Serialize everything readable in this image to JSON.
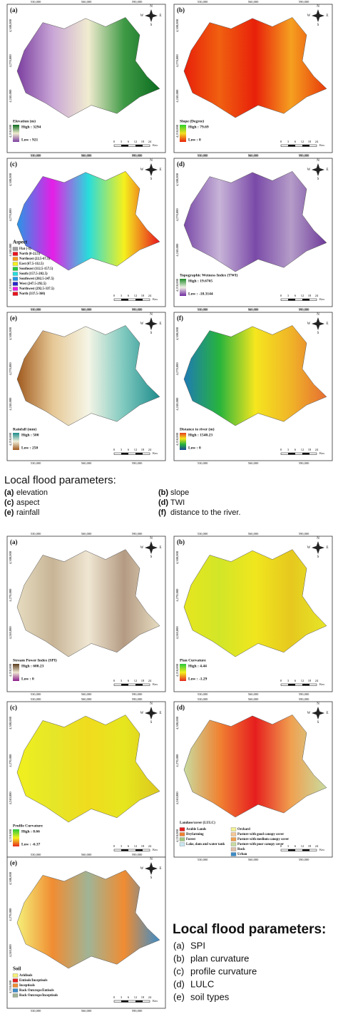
{
  "map_ticks": {
    "x": [
      "530,000",
      "560,000",
      "590,000"
    ],
    "y": [
      "4,300,000",
      "4,270,000",
      "4,240,000",
      "4,210,000"
    ]
  },
  "compass": [
    "N",
    "E",
    "S",
    "W"
  ],
  "scale_bar": {
    "labels": [
      "0",
      "3",
      "6",
      "12",
      "18",
      "24"
    ],
    "unit": "Km"
  },
  "figure1": {
    "panels": [
      {
        "label": "(a)",
        "legend_title": "Elevation (m)",
        "high": "High : 3294",
        "low": "Low : 921",
        "ramp": [
          "#0b6b1f",
          "#f1ecd0",
          "#7b3fa0"
        ],
        "map_colors": [
          "#7b3fa0",
          "#c9a6d6",
          "#f1ecd0",
          "#3f9a45",
          "#0b6b1f"
        ]
      },
      {
        "label": "(b)",
        "legend_title": "Slope (Degree)",
        "high": "High : 79.69",
        "low": "Low : 0",
        "ramp": [
          "#2bd12b",
          "#f5e020",
          "#e8200a"
        ],
        "map_colors": [
          "#e8200a",
          "#f06010",
          "#e8200a",
          "#f5a020",
          "#e83a0a"
        ]
      },
      {
        "label": "(c)",
        "legend_title": "Aspect",
        "classes": [
          {
            "name": "Flat (-1)",
            "color": "#a0a0a0"
          },
          {
            "name": "North (0-22.5)",
            "color": "#e8141e"
          },
          {
            "name": "Northeast (22.5-67.5)",
            "color": "#f59a1e"
          },
          {
            "name": "East (67.5-112.5)",
            "color": "#f5f01e"
          },
          {
            "name": "Southeast (112.5-157.5)",
            "color": "#28c83c"
          },
          {
            "name": "South (157.5-202.5)",
            "color": "#28dcdc"
          },
          {
            "name": "Southwest (202.5-247.5)",
            "color": "#2896e6"
          },
          {
            "name": "West (247.5-292.5)",
            "color": "#2828c8"
          },
          {
            "name": "Northwest (292.5-337.5)",
            "color": "#e61ee6"
          },
          {
            "name": "North (337.5-360)",
            "color": "#e8141e"
          }
        ],
        "map_colors": [
          "#2896e6",
          "#e61ee6",
          "#28dcdc",
          "#f5f01e",
          "#e8141e"
        ]
      },
      {
        "label": "(d)",
        "legend_title": "Topographic Wetness Index (TWI)",
        "high": "High : 19.6765",
        "low": "Low : -18.3144",
        "ramp": [
          "#1e8c28",
          "#f0f0e6",
          "#6e28a0"
        ],
        "map_colors": [
          "#7a4aa8",
          "#c8b4d8",
          "#7a4aa8",
          "#b49cc8",
          "#6e3a9a"
        ]
      },
      {
        "label": "(e)",
        "legend_title": "Rainfall (mm)",
        "high": "High : 500",
        "low": "Low : 250",
        "ramp": [
          "#1e8c8c",
          "#f0f0dc",
          "#a05a1e"
        ],
        "map_colors": [
          "#a05a1e",
          "#e6c896",
          "#f5f5e6",
          "#7ec8be",
          "#1e8c8c"
        ]
      },
      {
        "label": "(f)",
        "legend_title": "Distance to river (m)",
        "high": "High : 1540.23",
        "low": "Low : 0",
        "ramp": [
          "#e63c1e",
          "#f5e61e",
          "#28b43c",
          "#1e4696"
        ],
        "map_colors": [
          "#1e7ab4",
          "#28b43c",
          "#f5e61e",
          "#f0b428",
          "#e66e32"
        ]
      }
    ],
    "caption": {
      "title": "Local flood parameters:",
      "items": [
        {
          "key": "(a)",
          "text": "elevation"
        },
        {
          "key": "(b)",
          "text": "slope"
        },
        {
          "key": "(c)",
          "text": "aspect"
        },
        {
          "key": "(d)",
          "text": "TWI"
        },
        {
          "key": "(e)",
          "text": "rainfall"
        },
        {
          "key": "(f)",
          "text": "distance to the river."
        }
      ]
    }
  },
  "figure2": {
    "panels": [
      {
        "label": "(a)",
        "legend_title": "Stream Power Index (SPI)",
        "high": "High : 600.23",
        "low": "Low : 0",
        "ramp": [
          "#5a3c1e",
          "#f0e6d2",
          "#8c1e8c"
        ],
        "map_colors": [
          "#e6dcc0",
          "#c8b496",
          "#efe6d2",
          "#b49a82",
          "#e6dcc0"
        ]
      },
      {
        "label": "(b)",
        "legend_title": "Plan Curvature",
        "high": "High : 4.44",
        "low": "Low : -1.29",
        "ramp": [
          "#28c83c",
          "#f5f01e",
          "#e6281e"
        ],
        "map_colors": [
          "#e6e61e",
          "#d2e628",
          "#f0e61e",
          "#e6c81e",
          "#e6e628"
        ]
      },
      {
        "label": "(c)",
        "legend_title": "Profile Curvature",
        "high": "High : 8.66",
        "low": "Low : -6.37",
        "ramp": [
          "#28c83c",
          "#f5f01e",
          "#e6281e"
        ],
        "map_colors": [
          "#f0f01e",
          "#e6e628",
          "#f0dc1e",
          "#e6e61e",
          "#dcc81e"
        ]
      },
      {
        "label": "(d)",
        "legend_title": "Landuse/cover (LULC)",
        "classes": [
          {
            "name": "Arable Lands",
            "color": "#e61e1e"
          },
          {
            "name": "Dryfarming",
            "color": "#f08232"
          },
          {
            "name": "Forest",
            "color": "#a0c882"
          },
          {
            "name": "Lake, dam and water tank",
            "color": "#c8e6f0"
          },
          {
            "name": "Orchard",
            "color": "#f0f096"
          },
          {
            "name": "Pasture with good canopy cover",
            "color": "#f5c896"
          },
          {
            "name": "Pasture with medium canopy cover",
            "color": "#f0a050"
          },
          {
            "name": "Pasture with poor canopy cover",
            "color": "#c8dca0"
          },
          {
            "name": "Rock",
            "color": "#dcbeaa"
          },
          {
            "name": "Urban",
            "color": "#3c8cc8"
          }
        ],
        "map_colors": [
          "#c8dca0",
          "#f08232",
          "#e61e1e",
          "#f0a050",
          "#c8dca0"
        ]
      },
      {
        "label": "(e)",
        "legend_title": "Soil",
        "classes": [
          {
            "name": "Aridisols",
            "color": "#f5f078"
          },
          {
            "name": "Entisols/Inceptisols",
            "color": "#e61e1e"
          },
          {
            "name": "Inceptisols",
            "color": "#f08c32"
          },
          {
            "name": "Rock Outcrops/Entisols",
            "color": "#3c8cc8"
          },
          {
            "name": "Rock Outcrops/Inceptisols",
            "color": "#a0b496"
          }
        ],
        "map_colors": [
          "#f5f078",
          "#f08c32",
          "#a0b496",
          "#f08c32",
          "#3c8cc8"
        ]
      }
    ],
    "caption": {
      "title": "Local flood parameters:",
      "items": [
        {
          "key": "(a)",
          "text": "SPI"
        },
        {
          "key": "(b)",
          "text": "plan curvature"
        },
        {
          "key": "(c)",
          "text": "profile curvature"
        },
        {
          "key": "(d)",
          "text": "LULC"
        },
        {
          "key": "(e)",
          "text": "soil types"
        }
      ]
    }
  }
}
